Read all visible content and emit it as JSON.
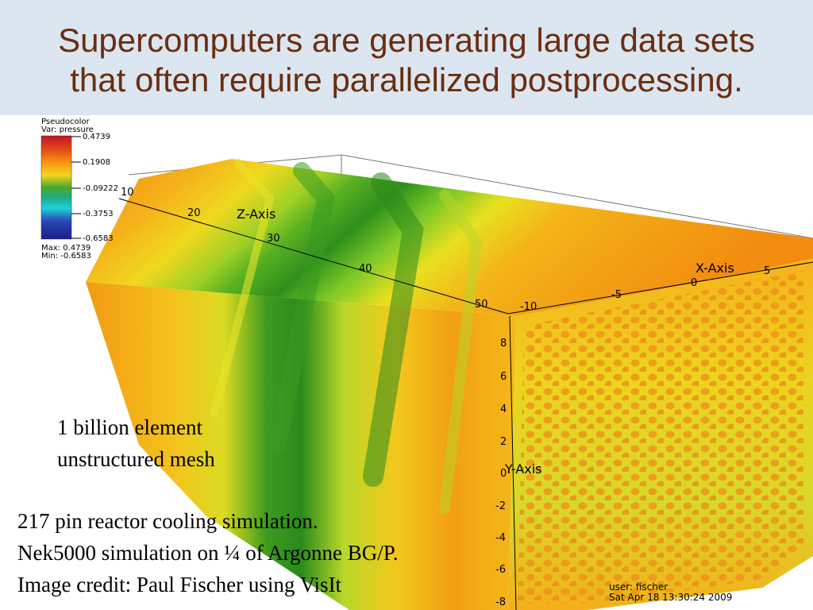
{
  "slide": {
    "title_line1": "Supercomputers are generating large data sets",
    "title_line2": "that often require parallelized postprocessing."
  },
  "legend": {
    "plot_type": "Pseudocolor",
    "variable": "Var: pressure",
    "ticks": [
      "0.4739",
      "0.1908",
      "-0.09222",
      "-0.3753",
      "-0.6583"
    ],
    "max_label": "Max: 0.4739",
    "min_label": "Min: -0.6583"
  },
  "axes": {
    "z_title": "Z-Axis",
    "x_title": "X-Axis",
    "y_title": "Y-Axis",
    "z_ticks": [
      "10",
      "20",
      "30",
      "40",
      "50"
    ],
    "x_ticks": [
      "-10",
      "-5",
      "0",
      "5"
    ],
    "y_ticks": [
      "8",
      "6",
      "4",
      "2",
      "0",
      "-2",
      "-4",
      "-6",
      "-8"
    ]
  },
  "stamp": {
    "user": "user: fischer",
    "datetime": "Sat Apr 18 13:30:24 2009"
  },
  "captions": {
    "mesh_line1": "1 billion element",
    "mesh_line2": "unstructured mesh",
    "sim_line1": "217 pin reactor cooling simulation.",
    "sim_line2": "Nek5000 simulation on ¼ of Argonne BG/P.",
    "sim_line3": "Image credit: Paul Fischer using VisIt"
  },
  "colors": {
    "title": "#6b2d0f",
    "header_bg": "#dbe6f0"
  }
}
